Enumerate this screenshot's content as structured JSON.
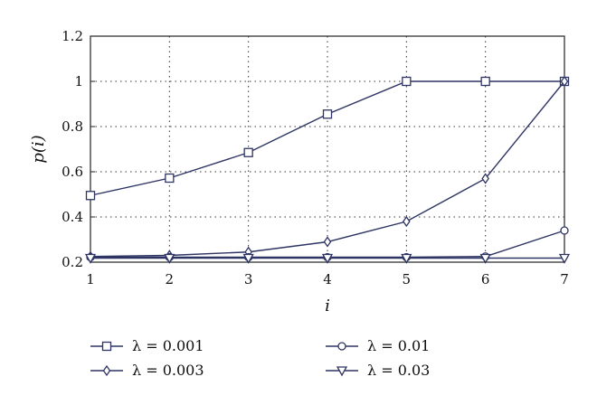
{
  "chart_data": {
    "type": "line",
    "title": "",
    "xlabel": "i",
    "ylabel": "p(i)",
    "xlim": [
      1,
      7
    ],
    "ylim": [
      0.2,
      1.2
    ],
    "grid": true,
    "legend_position": "bottom",
    "line_color": "#2e3463",
    "x_ticks": [
      "1",
      "2",
      "3",
      "4",
      "5",
      "6",
      "7"
    ],
    "y_ticks": [
      "0.2",
      "0.4",
      "0.6",
      "0.8",
      "1",
      "1.2"
    ],
    "x": [
      1,
      2,
      3,
      4,
      5,
      6,
      7
    ],
    "series": [
      {
        "name": "λ = 0.001",
        "marker": "square",
        "values": [
          0.495,
          0.572,
          0.685,
          0.855,
          1.0,
          1.0,
          1.0
        ]
      },
      {
        "name": "λ = 0.003",
        "marker": "diamond",
        "values": [
          0.225,
          0.23,
          0.245,
          0.29,
          0.38,
          0.57,
          1.0
        ]
      },
      {
        "name": "λ = 0.01",
        "marker": "circle",
        "values": [
          0.222,
          0.222,
          0.222,
          0.222,
          0.222,
          0.225,
          0.34
        ]
      },
      {
        "name": "λ = 0.03",
        "marker": "triangle",
        "values": [
          0.218,
          0.218,
          0.218,
          0.218,
          0.218,
          0.218,
          0.218
        ]
      }
    ]
  }
}
